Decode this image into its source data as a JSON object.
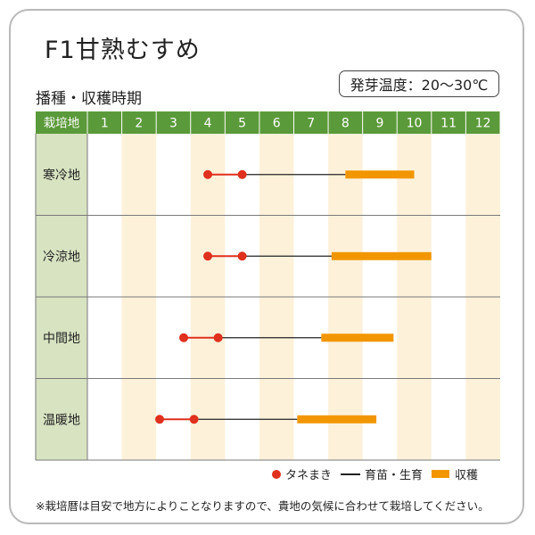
{
  "title": "F1甘熟むすめ",
  "temp_label": "発芽温度：20～30℃",
  "subtitle": "播種・収穫時期",
  "legend": {
    "sowing": "タネまき",
    "growing": "育苗・生育",
    "harvest": "収穫"
  },
  "note": "※栽培暦は目安で地方によりことなりますので、貴地の気候に合わせて栽培してください。",
  "colors": {
    "header_bg": "#5b9a3a",
    "label_bg": "#d7e3c1",
    "stripe": "#fdf1da",
    "dot": "#e0301e",
    "harvest": "#f29600"
  },
  "chart_data": {
    "type": "gantt",
    "header_label": "栽培地",
    "months": [
      "1",
      "2",
      "3",
      "4",
      "5",
      "6",
      "7",
      "8",
      "9",
      "10",
      "11",
      "12"
    ],
    "rows": [
      {
        "name": "寒冷地",
        "sowing": [
          4.0,
          5.0
        ],
        "growing_end": 8.0,
        "harvest": [
          8.0,
          10.0
        ]
      },
      {
        "name": "冷涼地",
        "sowing": [
          4.0,
          5.0
        ],
        "growing_end": 7.6,
        "harvest": [
          7.6,
          10.5
        ]
      },
      {
        "name": "中間地",
        "sowing": [
          3.3,
          4.3
        ],
        "growing_end": 7.3,
        "harvest": [
          7.3,
          9.4
        ]
      },
      {
        "name": "温暖地",
        "sowing": [
          2.6,
          3.6
        ],
        "growing_end": 6.6,
        "harvest": [
          6.6,
          8.9
        ]
      }
    ]
  }
}
